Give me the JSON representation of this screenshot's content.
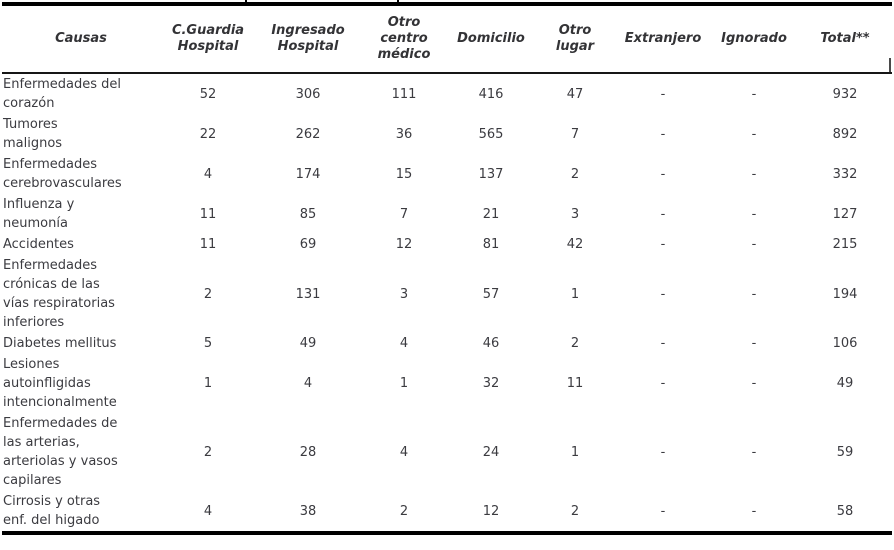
{
  "colors": {
    "background": "#ffffff",
    "text": "#3b3b40",
    "header_text": "#333336",
    "rule": "#000000"
  },
  "table": {
    "columns": [
      {
        "key": "causas",
        "label": "Causas"
      },
      {
        "key": "c-guardia",
        "label": "C.Guardia\nHospital"
      },
      {
        "key": "ingresado",
        "label": "Ingresado\nHospital"
      },
      {
        "key": "otro-centro",
        "label": "Otro\ncentro\nmédico"
      },
      {
        "key": "domicilio",
        "label": "Domicilio"
      },
      {
        "key": "otro-lugar",
        "label": "Otro\nlugar"
      },
      {
        "key": "extranjero",
        "label": "Extranjero"
      },
      {
        "key": "ignorado",
        "label": "Ignorado"
      },
      {
        "key": "total",
        "label": "Total**"
      }
    ],
    "rows": [
      {
        "causa": "Enfermedades del\ncorazón",
        "values": [
          "52",
          "306",
          "111",
          "416",
          "47",
          "-",
          "-",
          "932"
        ]
      },
      {
        "causa": "Tumores\nmalignos",
        "values": [
          "22",
          "262",
          "36",
          "565",
          "7",
          "-",
          "-",
          "892"
        ]
      },
      {
        "causa": "Enfermedades\ncerebrovasculares",
        "values": [
          "4",
          "174",
          "15",
          "137",
          "2",
          "-",
          "-",
          "332"
        ]
      },
      {
        "causa": "Influenza y\nneumonía",
        "values": [
          "11",
          "85",
          "7",
          "21",
          "3",
          "-",
          "-",
          "127"
        ]
      },
      {
        "causa": "Accidentes",
        "values": [
          "11",
          "69",
          "12",
          "81",
          "42",
          "-",
          "-",
          "215"
        ]
      },
      {
        "causa": "Enfermedades\ncrónicas de las\nvías respiratorias\ninferiores",
        "values": [
          "2",
          "131",
          "3",
          "57",
          "1",
          "-",
          "-",
          "194"
        ]
      },
      {
        "causa": "Diabetes mellitus",
        "values": [
          "5",
          "49",
          "4",
          "46",
          "2",
          "-",
          "-",
          "106"
        ]
      },
      {
        "causa": "Lesiones\nautoinfligidas\nintencionalmente",
        "values": [
          "1",
          "4",
          "1",
          "32",
          "11",
          "-",
          "-",
          "49"
        ]
      },
      {
        "causa": "Enfermedades de\nlas arterias,\narteriolas y vasos\ncapilares",
        "values": [
          "2",
          "28",
          "4",
          "24",
          "1",
          "-",
          "-",
          "59"
        ]
      },
      {
        "causa": "Cirrosis y otras\nenf. del higado",
        "values": [
          "4",
          "38",
          "2",
          "12",
          "2",
          "-",
          "-",
          "58"
        ]
      }
    ]
  }
}
